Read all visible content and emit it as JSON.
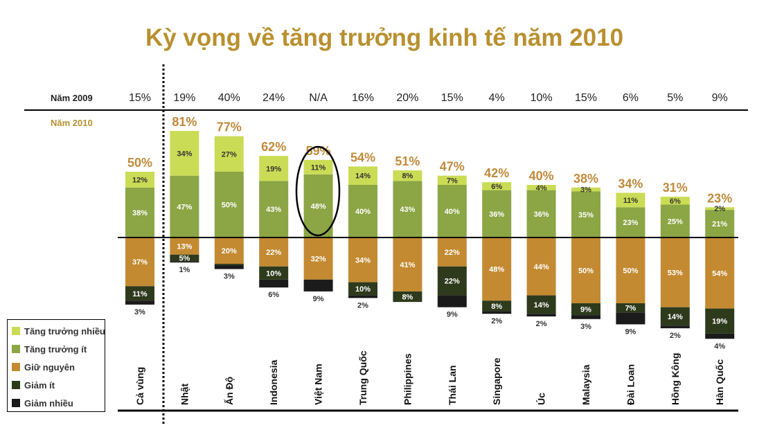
{
  "chart_data": {
    "type": "bar",
    "stacked": true,
    "diverging": true,
    "title": "Kỳ vọng về tăng trưởng kinh tế năm 2010",
    "row_labels": {
      "y2009": "Năm 2009",
      "y2010": "Năm 2010"
    },
    "categories": [
      "Cả vùng",
      "Nhật",
      "Ấn Độ",
      "Indonesia",
      "Việt Nam",
      "Trung Quốc",
      "Philippines",
      "Thái Lan",
      "Singapore",
      "Úc",
      "Malaysia",
      "Đài Loan",
      "Hồng Kông",
      "Hàn Quốc"
    ],
    "year_2009": [
      "15%",
      "19%",
      "40%",
      "24%",
      "N/A",
      "16%",
      "20%",
      "15%",
      "4%",
      "10%",
      "15%",
      "6%",
      "5%",
      "9%"
    ],
    "totals_2010": [
      50,
      81,
      77,
      62,
      59,
      54,
      51,
      47,
      42,
      40,
      38,
      34,
      31,
      23
    ],
    "series": [
      {
        "name": "Tăng trưởng nhiều",
        "color": "#cadc55",
        "direction": "up",
        "values": [
          12,
          34,
          27,
          19,
          11,
          14,
          8,
          7,
          6,
          4,
          3,
          11,
          6,
          2
        ]
      },
      {
        "name": "Tăng trưởng ít",
        "color": "#8ca545",
        "direction": "up",
        "values": [
          38,
          47,
          50,
          43,
          48,
          40,
          43,
          40,
          36,
          36,
          35,
          23,
          25,
          21
        ]
      },
      {
        "name": "Giữ nguyên",
        "color": "#c38a32",
        "direction": "down",
        "values": [
          37,
          13,
          20,
          22,
          32,
          34,
          41,
          22,
          48,
          44,
          50,
          50,
          53,
          54
        ]
      },
      {
        "name": "Giảm ít",
        "color": "#2e3a1c",
        "direction": "down",
        "values": [
          11,
          5,
          1,
          10,
          0,
          10,
          8,
          22,
          8,
          14,
          9,
          7,
          14,
          19
        ]
      },
      {
        "name": "Giảm nhiều",
        "color": "#1b1b1b",
        "direction": "down",
        "values": [
          3,
          1,
          3,
          6,
          9,
          2,
          0,
          9,
          2,
          2,
          3,
          9,
          2,
          4
        ]
      }
    ],
    "bar_labels": [
      [
        "12%",
        "34%",
        "27%",
        "19%",
        "11%",
        "14%",
        "8%",
        "7%",
        "6%",
        "4%",
        "3%",
        "11%",
        "6%",
        "2%"
      ],
      [
        "38%",
        "47%",
        "50%",
        "43%",
        "48%",
        "40%",
        "43%",
        "40%",
        "36%",
        "36%",
        "35%",
        "23%",
        "25%",
        "21%"
      ],
      [
        "37%",
        "13%",
        "20%",
        "22%",
        "32%",
        "34%",
        "41%",
        "22%",
        "48%",
        "44%",
        "50%",
        "50%",
        "53%",
        "54%"
      ],
      [
        "11%",
        "5%",
        "",
        "10%",
        "",
        "10%",
        "8%",
        "22%",
        "8%",
        "14%",
        "9%",
        "7%",
        "14%",
        "19%"
      ]
    ],
    "bottom_labels": [
      "3%",
      "1%",
      "3%",
      "6%",
      "9%",
      "2%",
      "",
      "9%",
      "2%",
      "2%",
      "3%",
      "9%",
      "2%",
      "4%"
    ],
    "highlighted_category": "Việt Nam",
    "legend_position": "bottom-left",
    "colors": {
      "title": "#b8902f",
      "total": "#c08a3a",
      "total_2010_label": "#b8902f"
    }
  }
}
